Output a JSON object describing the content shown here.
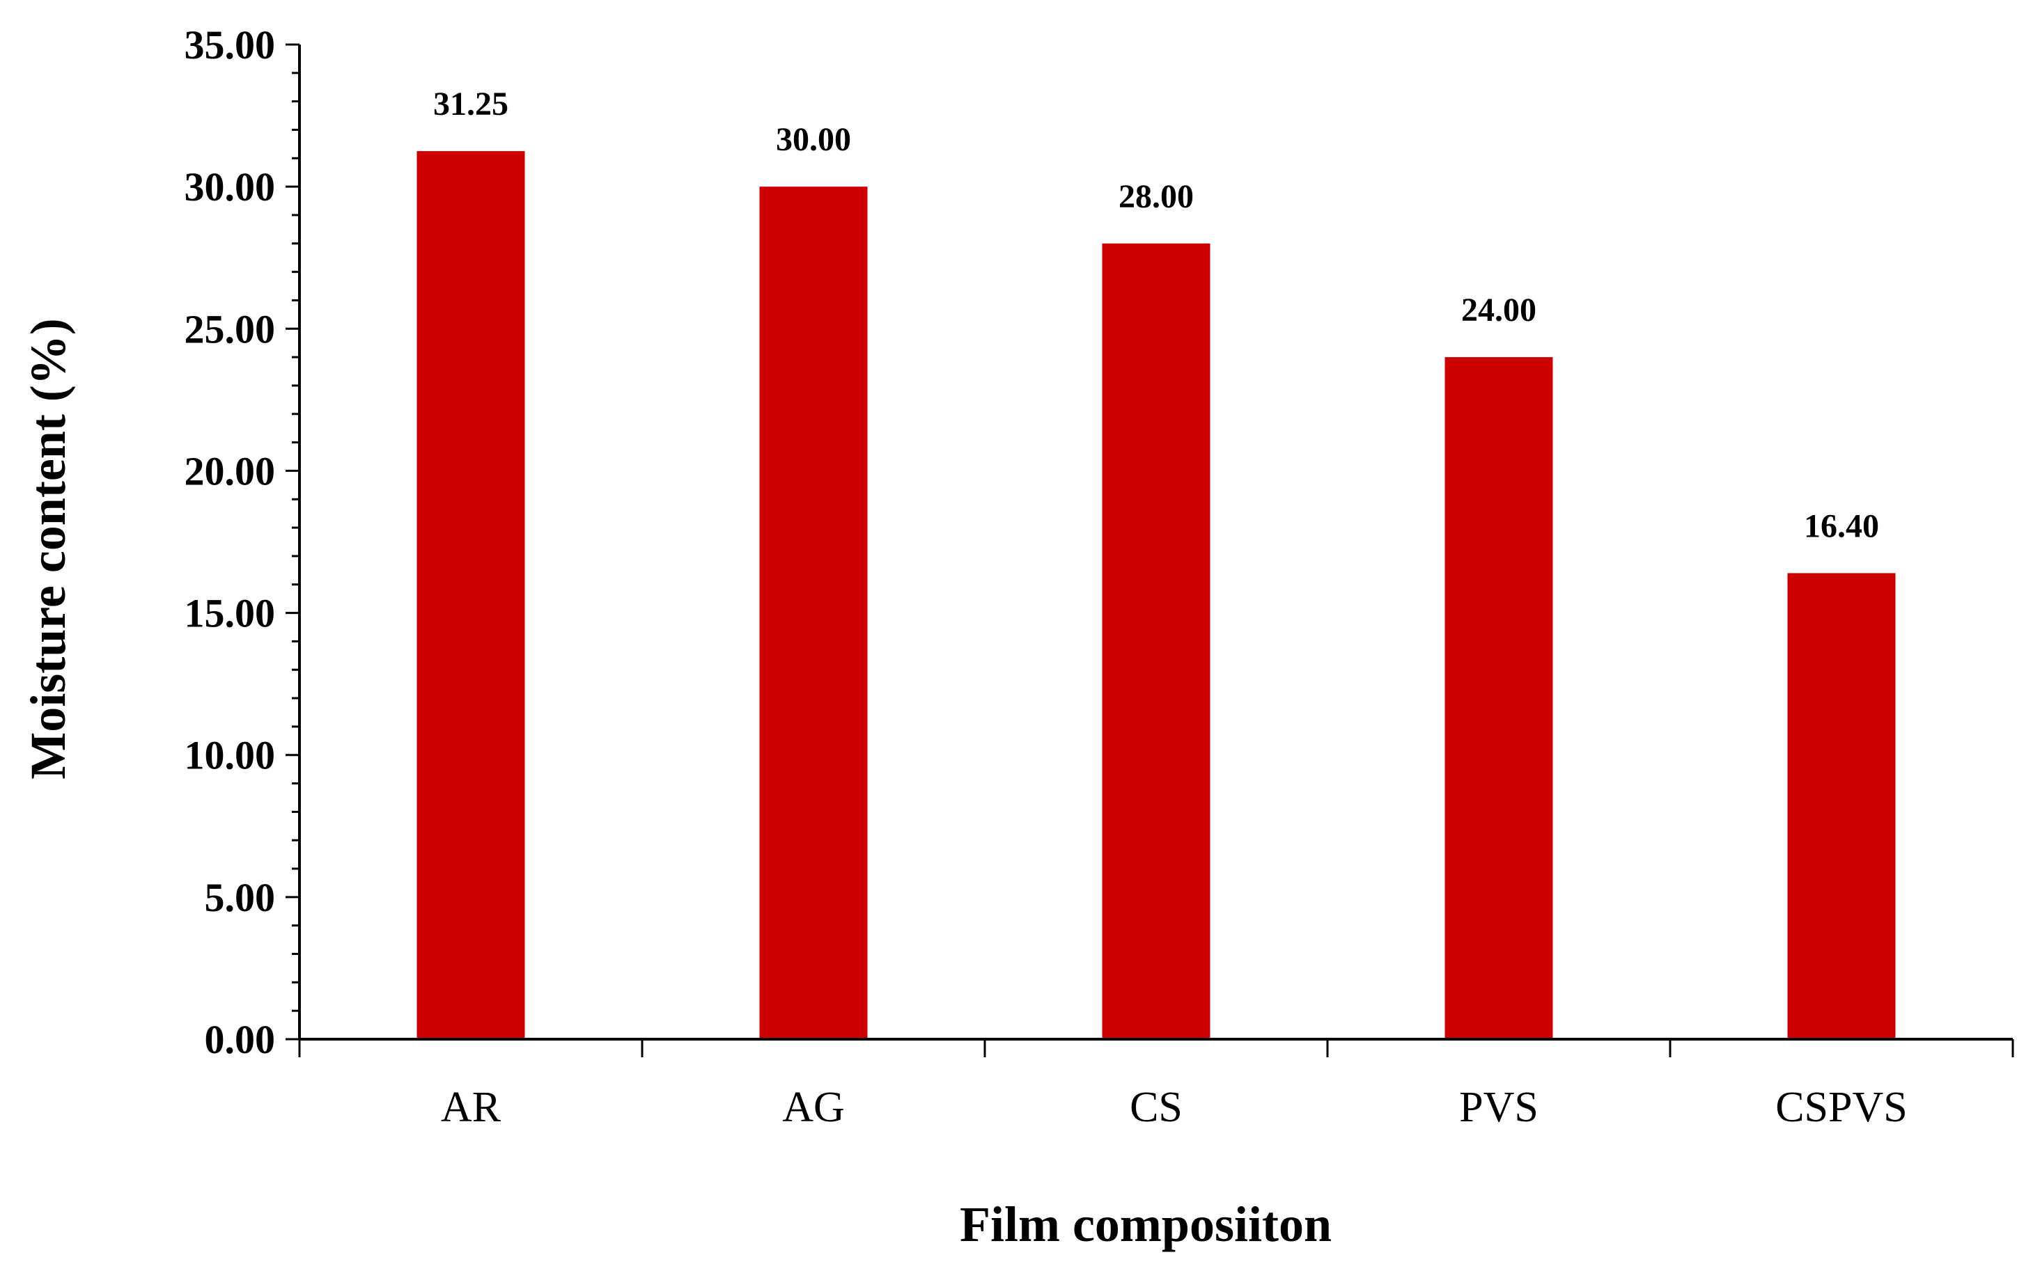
{
  "chart_data": {
    "type": "bar",
    "title": "",
    "xlabel": "Film composiiton",
    "ylabel": "Moisture content (%)",
    "categories": [
      "AR",
      "AG",
      "CS",
      "PVS",
      "CSPVS"
    ],
    "values": [
      31.25,
      30.0,
      28.0,
      24.0,
      16.4
    ],
    "data_labels": [
      "31.25",
      "30.00",
      "28.00",
      "24.00",
      "16.40"
    ],
    "ylim": [
      0,
      35
    ],
    "y_ticks": [
      "0.00",
      "5.00",
      "10.00",
      "15.00",
      "20.00",
      "25.00",
      "30.00",
      "35.00"
    ],
    "grid": false,
    "legend": "none",
    "bar_color": "#CC0000"
  }
}
